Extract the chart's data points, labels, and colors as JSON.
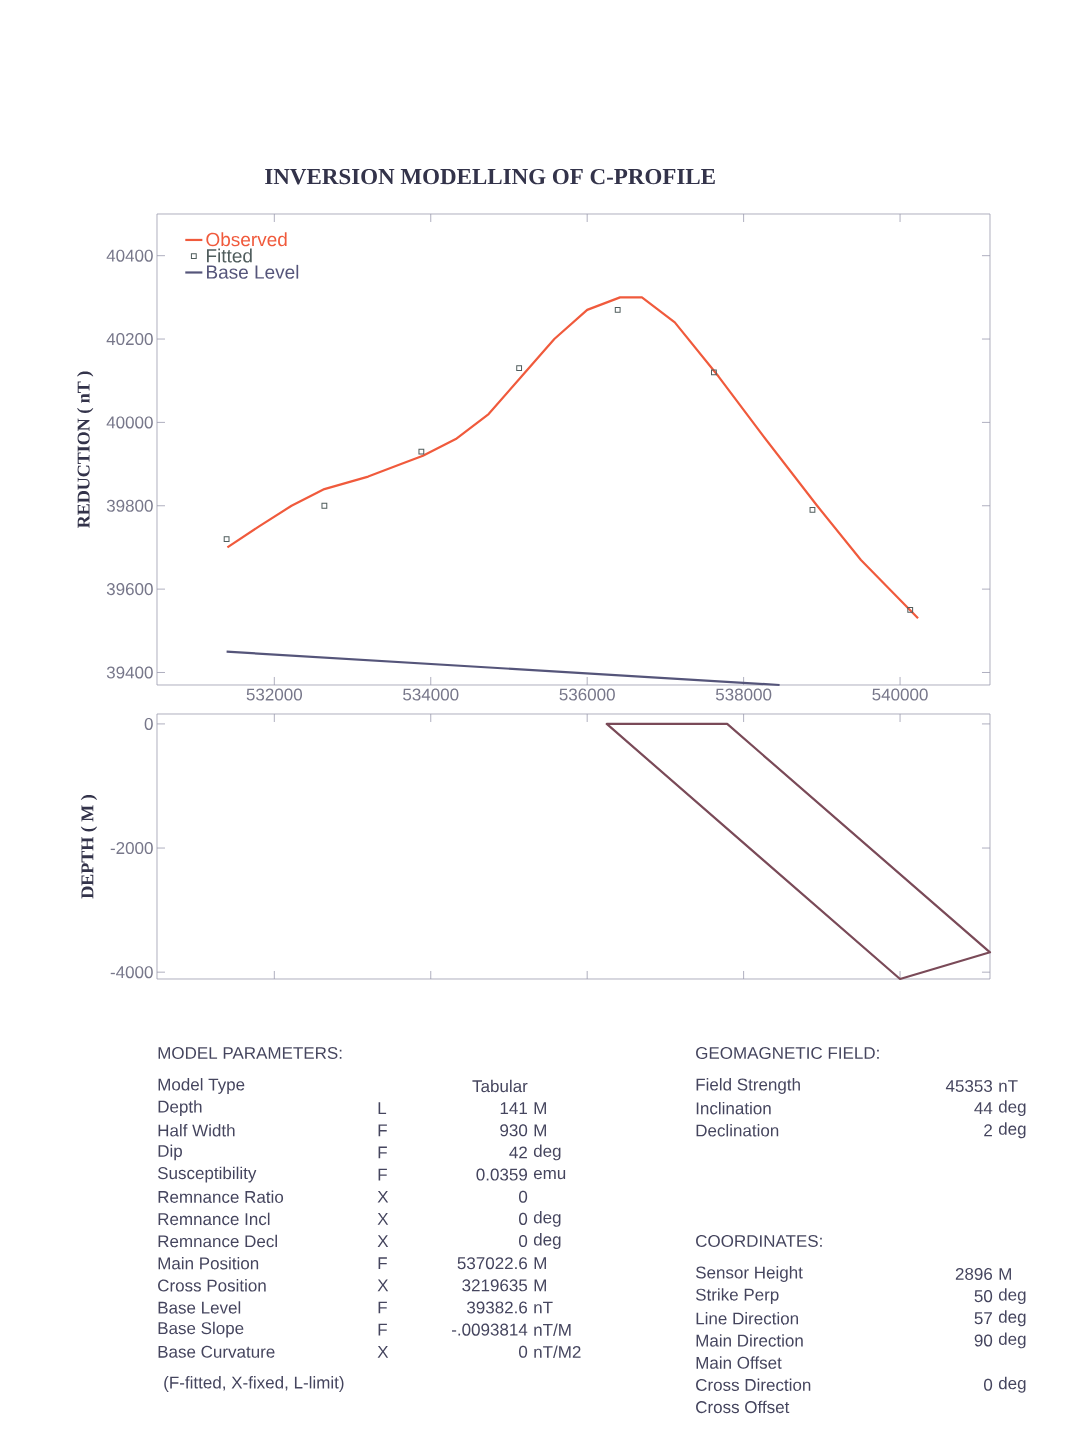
{
  "chart_data": [
    {
      "type": "line",
      "title": "INVERSION MODELLING OF C-PROFILE",
      "ylabel": "REDUCTION ( nT )",
      "xlim": [
        530500,
        541150
      ],
      "ylim": [
        39370,
        40500
      ],
      "xticks": [
        532000,
        534000,
        536000,
        538000,
        540000
      ],
      "yticks": [
        39400,
        39600,
        39800,
        40000,
        40200,
        40400
      ],
      "legend": "top left",
      "series": [
        {
          "name": "Observed",
          "type": "line",
          "color": "#f05a3c",
          "x": [
            531400,
            531800,
            532220,
            532640,
            533200,
            533620,
            533900,
            534320,
            534740,
            535160,
            535580,
            536000,
            536420,
            536700,
            537120,
            537680,
            538240,
            538940,
            539500,
            540230
          ],
          "values": [
            39700,
            39750,
            39800,
            39840,
            39870,
            39900,
            39920,
            39960,
            40020,
            40110,
            40200,
            40270,
            40300,
            40300,
            40240,
            40110,
            39970,
            39800,
            39670,
            39530
          ]
        },
        {
          "name": "Fitted",
          "type": "scatter",
          "marker": "square",
          "color": "#4f5c5c",
          "x": [
            531390,
            532640,
            533880,
            535130,
            536390,
            537620,
            538880,
            540130
          ],
          "values": [
            39720,
            39800,
            39930,
            40130,
            40270,
            40120,
            39790,
            39550
          ]
        },
        {
          "name": "Base Level",
          "type": "line",
          "color": "#55557a",
          "x": [
            531390,
            538460
          ],
          "values": [
            39450,
            39370
          ]
        }
      ]
    },
    {
      "type": "line",
      "ylabel": "DEPTH ( M )",
      "xlim": [
        530500,
        541150
      ],
      "ylim": [
        -4110,
        160
      ],
      "xticks": [
        532000,
        534000,
        536000,
        538000,
        540000
      ],
      "yticks": [
        -4000,
        -2000,
        0
      ],
      "tick_labels": "y"
    },
    {
      "type": "other",
      "title": "MODEL PARAMETERS:",
      "subtitle": "(F-fitted, X-fixed, L-limit)",
      "annotations": [
        "Model Type",
        null,
        "Tabular",
        null,
        "Depth",
        "L",
        "141",
        "M",
        "Half Width",
        "F",
        "930",
        "M",
        "Dip",
        "F",
        "42",
        "deg",
        "Susceptibility",
        "F",
        "0.0359",
        "emu",
        "Remnance Ratio",
        "X",
        "0",
        null,
        "Remnance Incl",
        "X",
        "0",
        "deg",
        "Remnance Decl",
        "X",
        "0",
        "deg",
        "Main Position",
        "F",
        "537022.6",
        "M",
        "Cross Position",
        "X",
        "3219635",
        "M",
        "Base Level",
        "F",
        "39382.6",
        "nT",
        "Base Slope",
        "F",
        "-.0093814",
        "nT/M",
        "Base Curvature",
        "X",
        "0",
        "nT/M2"
      ]
    },
    {
      "type": "other",
      "title": "GEOMAGNETIC FIELD:",
      "annotations": [
        "Field Strength",
        "45353",
        "nT",
        "Inclination",
        "44",
        "deg",
        "Declination",
        "2",
        "deg"
      ]
    },
    {
      "type": "other",
      "title": "COORDINATES:",
      "annotations": [
        "Sensor Height",
        "2896",
        "M",
        "Strike Perp",
        "50",
        "deg",
        "Line Direction",
        "57",
        "deg",
        "Main Direction",
        "90",
        "deg",
        "Main Offset",
        null,
        null,
        "Cross Direction",
        "0",
        "deg",
        "Cross Offset",
        null,
        null
      ]
    }
  ]
}
